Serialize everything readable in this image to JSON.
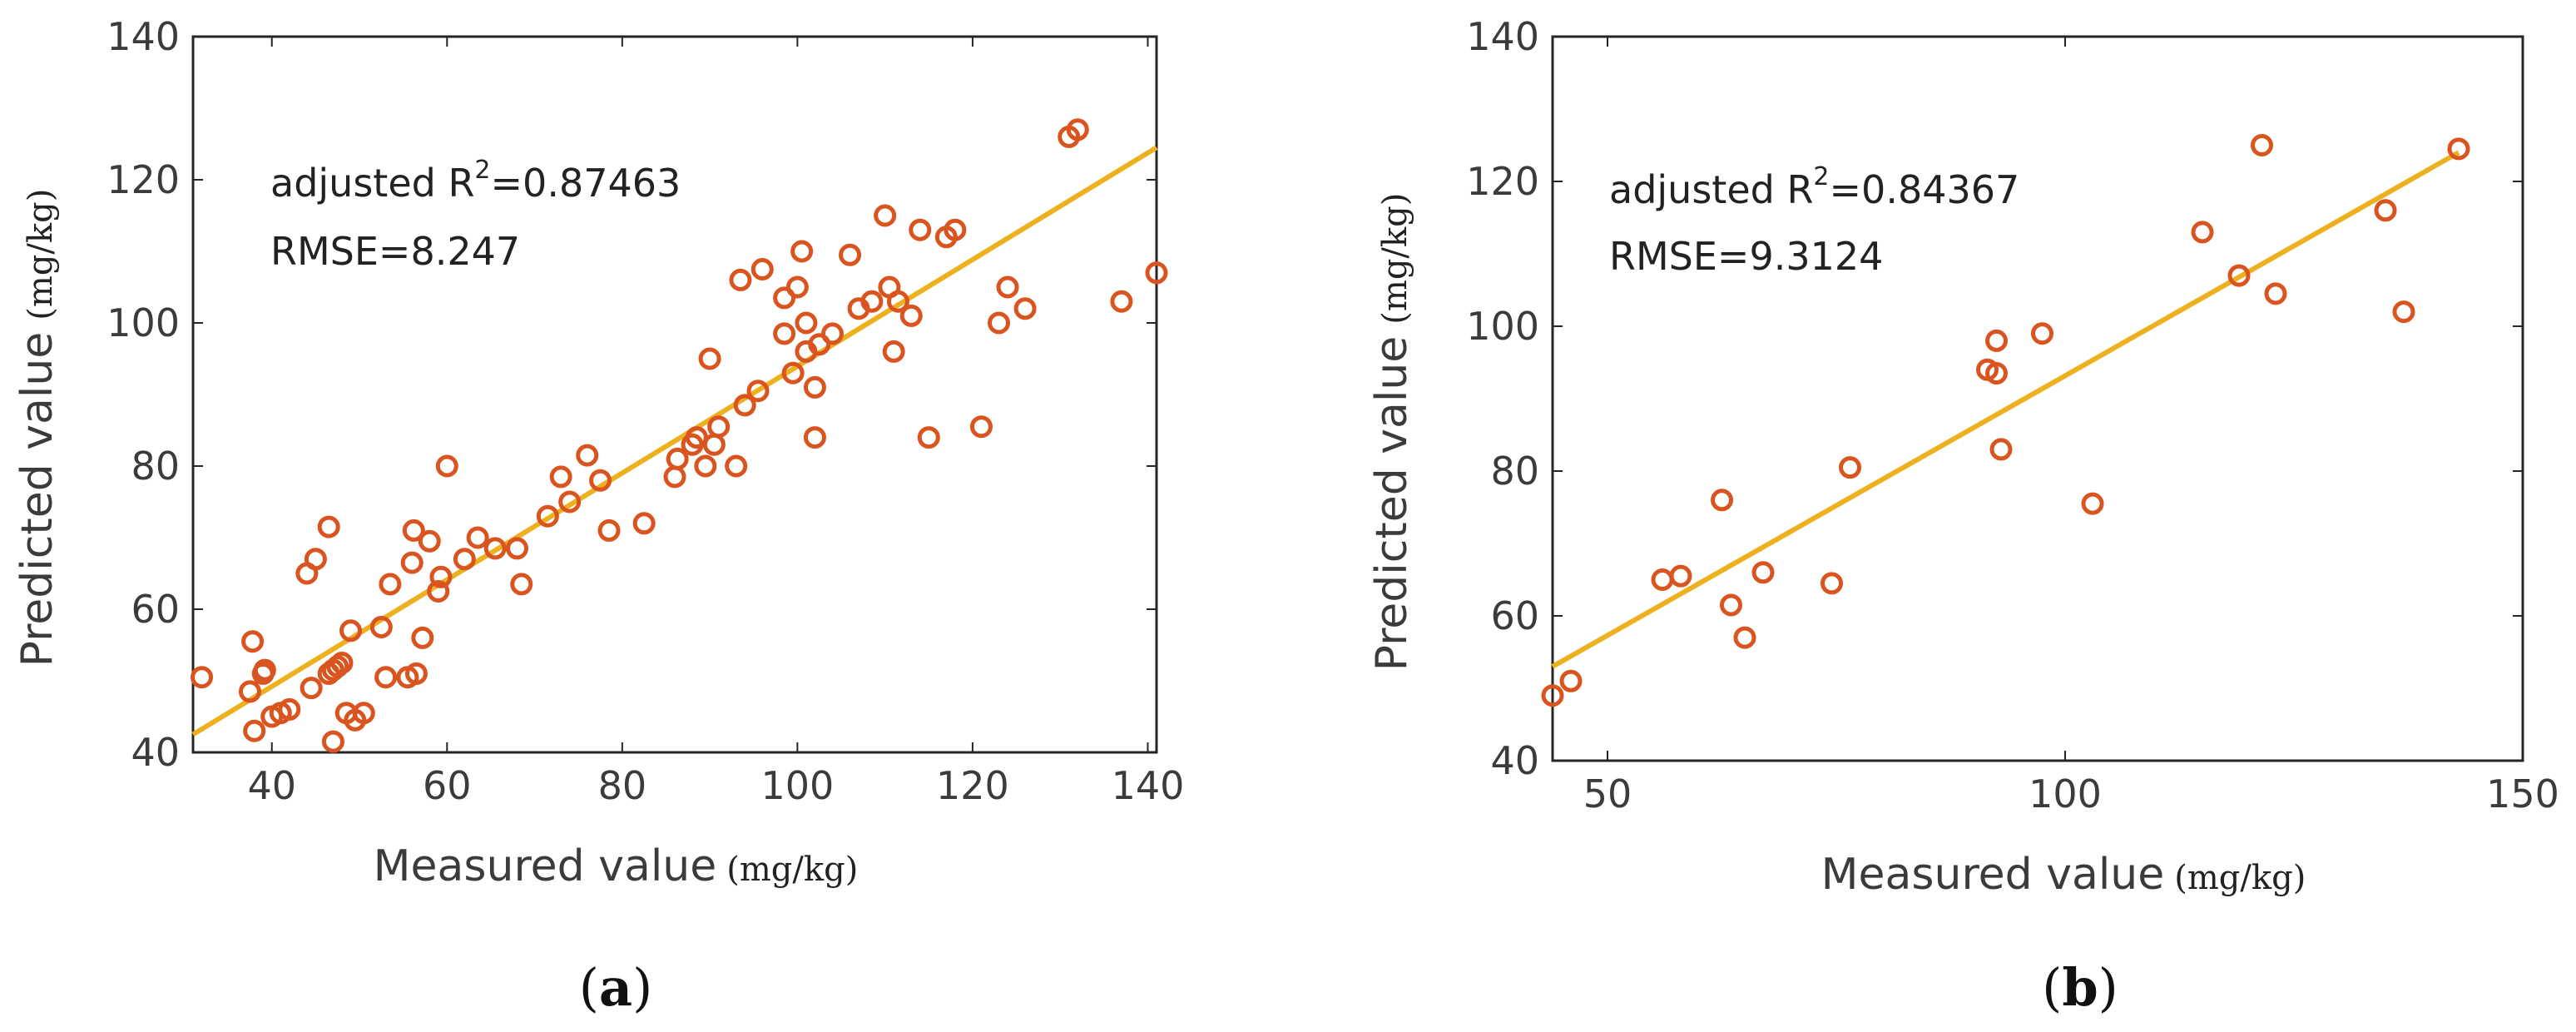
{
  "chart_data": [
    {
      "type": "scatter",
      "panel": "a",
      "xlabel": "Measured value",
      "ylabel": "Predicted value",
      "unit": "(mg/kg)",
      "xlim": [
        31,
        141
      ],
      "ylim": [
        40,
        140
      ],
      "xticks": [
        "40",
        "60",
        "80",
        "100",
        "120",
        "140"
      ],
      "yticks": [
        "40",
        "60",
        "80",
        "100",
        "120",
        "140"
      ],
      "annotation": {
        "r2_prefix": "adjusted R",
        "r2_sup": "2",
        "r2_value": "=0.87463",
        "rmse": "RMSE=8.247"
      },
      "fit_line": [
        [
          31,
          42.5
        ],
        [
          141,
          124.5
        ]
      ],
      "points": [
        [
          32,
          50.5
        ],
        [
          37.5,
          48.5
        ],
        [
          37.8,
          55.5
        ],
        [
          38,
          43
        ],
        [
          39,
          51
        ],
        [
          39.2,
          51.5
        ],
        [
          40,
          45
        ],
        [
          41,
          45.5
        ],
        [
          42,
          46
        ],
        [
          44,
          65
        ],
        [
          44.5,
          49
        ],
        [
          45,
          67
        ],
        [
          46.5,
          71.5
        ],
        [
          46.5,
          51
        ],
        [
          47,
          41.5
        ],
        [
          47,
          51.5
        ],
        [
          47.5,
          52
        ],
        [
          48,
          52.5
        ],
        [
          48.5,
          45.5
        ],
        [
          49,
          57
        ],
        [
          49.5,
          44.5
        ],
        [
          50.5,
          45.5
        ],
        [
          52.5,
          57.5
        ],
        [
          53,
          50.5
        ],
        [
          53.5,
          63.5
        ],
        [
          55.5,
          50.5
        ],
        [
          56,
          66.5
        ],
        [
          56.2,
          71
        ],
        [
          56.5,
          51
        ],
        [
          57.2,
          56
        ],
        [
          58,
          69.5
        ],
        [
          59,
          62.5
        ],
        [
          59.3,
          64.5
        ],
        [
          60,
          80
        ],
        [
          62,
          67
        ],
        [
          63.5,
          70
        ],
        [
          65.5,
          68.5
        ],
        [
          68,
          68.5
        ],
        [
          68.5,
          63.5
        ],
        [
          71.5,
          73
        ],
        [
          73,
          78.5
        ],
        [
          74,
          75
        ],
        [
          76,
          81.5
        ],
        [
          77.5,
          78
        ],
        [
          78.5,
          71
        ],
        [
          82.5,
          72
        ],
        [
          86,
          78.5
        ],
        [
          86.3,
          81
        ],
        [
          88,
          83
        ],
        [
          88.5,
          84
        ],
        [
          89.5,
          80
        ],
        [
          90,
          95
        ],
        [
          90.5,
          83
        ],
        [
          91,
          85.5
        ],
        [
          93,
          80
        ],
        [
          93.5,
          106
        ],
        [
          94,
          88.5
        ],
        [
          95.5,
          90.5
        ],
        [
          96,
          107.5
        ],
        [
          98.5,
          103.5
        ],
        [
          98.5,
          98.5
        ],
        [
          99.5,
          93
        ],
        [
          100,
          105
        ],
        [
          100.5,
          110
        ],
        [
          101,
          100
        ],
        [
          101,
          96
        ],
        [
          102,
          91
        ],
        [
          102,
          84
        ],
        [
          102.5,
          97
        ],
        [
          104,
          98.5
        ],
        [
          106,
          109.5
        ],
        [
          107,
          102
        ],
        [
          108.5,
          103
        ],
        [
          110,
          115
        ],
        [
          110.5,
          105
        ],
        [
          111,
          96
        ],
        [
          111.5,
          103
        ],
        [
          113,
          101
        ],
        [
          114,
          113
        ],
        [
          115,
          84
        ],
        [
          117,
          112
        ],
        [
          118,
          113
        ],
        [
          121,
          85.5
        ],
        [
          123,
          100
        ],
        [
          124,
          105
        ],
        [
          126,
          102
        ],
        [
          131,
          126
        ],
        [
          132,
          127
        ],
        [
          137,
          103
        ],
        [
          141,
          107
        ]
      ]
    },
    {
      "type": "scatter",
      "panel": "b",
      "xlabel": "Measured value",
      "ylabel": "Predicted value",
      "unit": "(mg/kg)",
      "xlim": [
        44,
        150
      ],
      "ylim": [
        40,
        140
      ],
      "xticks": [
        "50",
        "100",
        "150"
      ],
      "yticks": [
        "40",
        "60",
        "80",
        "100",
        "120",
        "140"
      ],
      "annotation": {
        "r2_prefix": "adjusted R",
        "r2_sup": "2",
        "r2_value": "=0.84367",
        "rmse": "RMSE=9.3124"
      },
      "fit_line": [
        [
          44,
          53
        ],
        [
          143,
          124
        ]
      ],
      "points": [
        [
          44,
          49
        ],
        [
          46,
          51
        ],
        [
          56,
          65
        ],
        [
          58,
          65.5
        ],
        [
          62.5,
          76
        ],
        [
          63.5,
          61.5
        ],
        [
          65,
          57
        ],
        [
          67,
          66
        ],
        [
          74.5,
          64.5
        ],
        [
          76.5,
          80.5
        ],
        [
          91.5,
          94
        ],
        [
          92.5,
          98
        ],
        [
          92.5,
          93.5
        ],
        [
          93,
          83
        ],
        [
          97.5,
          99
        ],
        [
          103,
          75.5
        ],
        [
          115,
          113
        ],
        [
          119,
          107
        ],
        [
          121.5,
          125
        ],
        [
          123,
          104.5
        ],
        [
          135,
          116
        ],
        [
          137,
          102
        ],
        [
          143,
          124.5
        ]
      ]
    }
  ],
  "labels": {
    "panel_a": "a",
    "panel_b": "b",
    "paren_open": "(",
    "paren_close": ")"
  },
  "colors": {
    "marker": "#d9541e",
    "fit_line": "#edb120",
    "axis": "#262626"
  }
}
